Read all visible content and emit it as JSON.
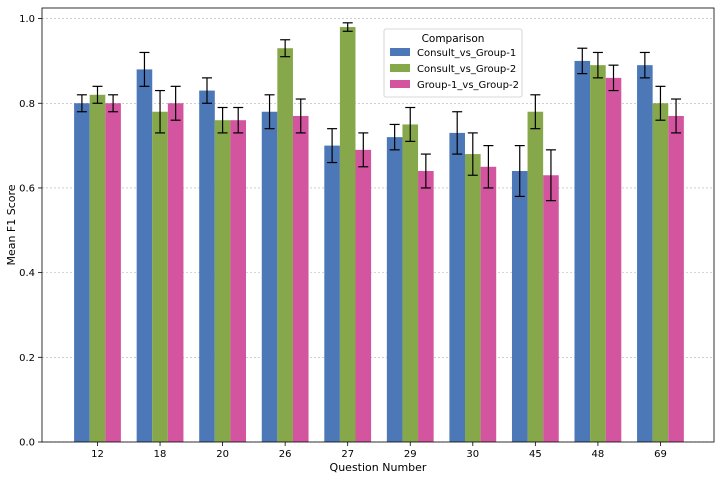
{
  "chart_data": {
    "type": "bar",
    "categories": [
      "12",
      "18",
      "20",
      "26",
      "27",
      "29",
      "30",
      "45",
      "48",
      "69"
    ],
    "series": [
      {
        "name": "Consult_vs_Group-1",
        "color": "#4c78b8",
        "values": [
          0.8,
          0.88,
          0.83,
          0.78,
          0.7,
          0.72,
          0.73,
          0.64,
          0.9,
          0.89
        ],
        "errors": [
          0.02,
          0.04,
          0.03,
          0.04,
          0.04,
          0.03,
          0.05,
          0.06,
          0.03,
          0.03
        ]
      },
      {
        "name": "Consult_vs_Group-2",
        "color": "#86a84a",
        "values": [
          0.82,
          0.78,
          0.76,
          0.93,
          0.98,
          0.75,
          0.68,
          0.78,
          0.89,
          0.8
        ],
        "errors": [
          0.02,
          0.05,
          0.03,
          0.02,
          0.01,
          0.04,
          0.05,
          0.04,
          0.03,
          0.04
        ]
      },
      {
        "name": "Group-1_vs_Group-2",
        "color": "#d4559f",
        "values": [
          0.8,
          0.8,
          0.76,
          0.77,
          0.69,
          0.64,
          0.65,
          0.63,
          0.86,
          0.77
        ],
        "errors": [
          0.02,
          0.04,
          0.03,
          0.04,
          0.04,
          0.04,
          0.05,
          0.06,
          0.03,
          0.04
        ]
      }
    ],
    "xlabel": "Question Number",
    "ylabel": "Mean F1 Score",
    "ylim": [
      0,
      1.025
    ],
    "yticks": [
      "0.0",
      "0.2",
      "0.4",
      "0.6",
      "0.8",
      "1.0"
    ],
    "legend_title": "Comparison",
    "legend_position": "top-center",
    "grid": "horizontal dashed"
  }
}
